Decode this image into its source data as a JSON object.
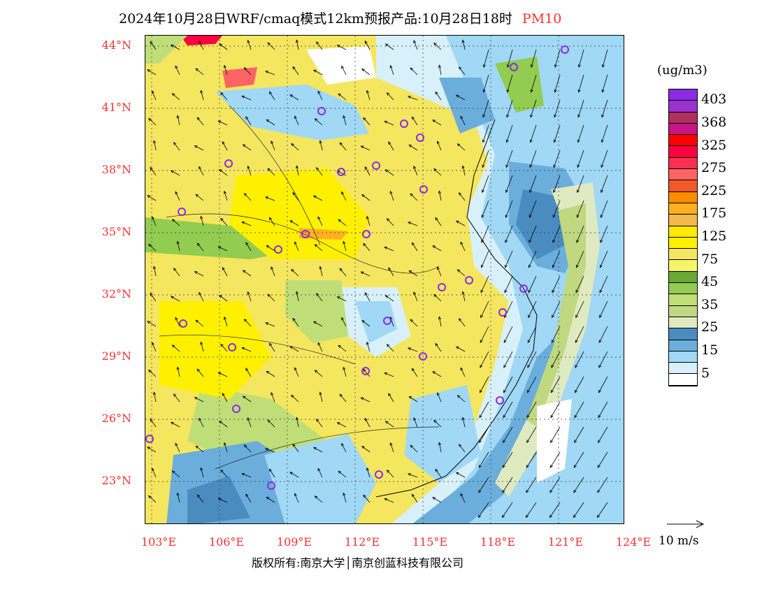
{
  "title": {
    "main": "2024年10月28日WRF/cmaq模式12km预报产品:10月28日18时",
    "pollutant": "PM10"
  },
  "lat_labels": [
    "44°N",
    "41°N",
    "38°N",
    "35°N",
    "32°N",
    "29°N",
    "26°N",
    "23°N"
  ],
  "lon_labels": [
    "103°E",
    "106°E",
    "109°E",
    "112°E",
    "115°E",
    "118°E",
    "121°E",
    "124°E"
  ],
  "legend": {
    "unit": "(ug/m3)",
    "colors": [
      "#8a2be2",
      "#9932cc",
      "#b03060",
      "#c71585",
      "#ff0000",
      "#ff0040",
      "#fa3050",
      "#ff6464",
      "#f05a28",
      "#ff8c00",
      "#ffb020",
      "#f5b84a",
      "#ffea00",
      "#fff000",
      "#f5e660",
      "#f5f56a",
      "#6ca835",
      "#92cc50",
      "#c0de78",
      "#c0d880",
      "#e0eac0",
      "#4a8cc0",
      "#6baedc",
      "#a0d8f5",
      "#d8f0fa",
      "#ffffff"
    ],
    "labels": [
      "403",
      "368",
      "325",
      "275",
      "225",
      "175",
      "125",
      "75",
      "45",
      "35",
      "25",
      "15",
      "5"
    ]
  },
  "wind_ref": "10 m/s",
  "copyright": "版权所有:南京大学│南京创蓝科技有限公司"
}
